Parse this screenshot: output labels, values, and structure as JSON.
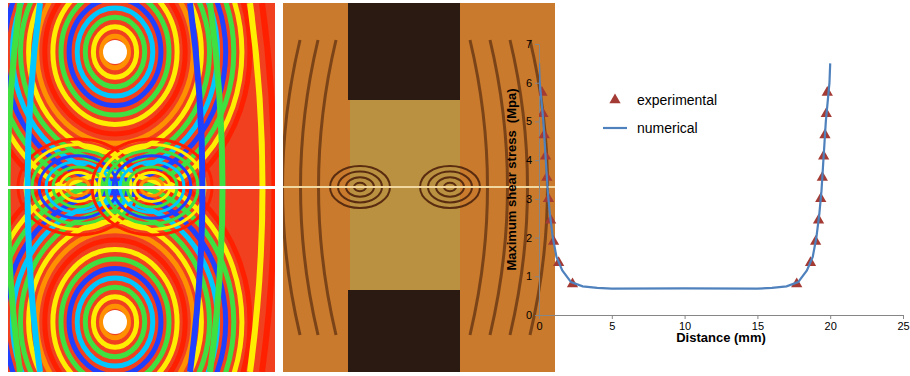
{
  "chart_data": {
    "type": "line",
    "x_label": "Distance (mm)",
    "y_label": "Maximum shear stress  (Mpa)",
    "xlim": [
      0,
      25
    ],
    "xticks": [
      0,
      5,
      10,
      15,
      20,
      25
    ],
    "ylim": [
      0,
      7
    ],
    "yticks": [
      0,
      1,
      2,
      3,
      4,
      5,
      6,
      7
    ],
    "grid": false,
    "legend": "top",
    "series": [
      {
        "name": "experimental",
        "type": "scatter",
        "marker": "triangle",
        "color": "#A33B34",
        "x": [
          0.2,
          0.27,
          0.36,
          0.45,
          0.54,
          0.65,
          0.8,
          1.0,
          1.35,
          2.3,
          17.7,
          18.65,
          19.0,
          19.2,
          19.35,
          19.46,
          19.55,
          19.64,
          19.73,
          19.8
        ],
        "values": [
          5.75,
          5.2,
          4.65,
          4.1,
          3.55,
          3.0,
          2.45,
          1.9,
          1.35,
          0.8,
          0.8,
          1.35,
          1.9,
          2.45,
          3.0,
          3.55,
          4.1,
          4.65,
          5.2,
          5.75
        ]
      },
      {
        "name": "numerical",
        "type": "line",
        "line_style": "solid",
        "color": "#4F81BD",
        "x": [
          0,
          0.05,
          0.15,
          0.3,
          0.4,
          0.5,
          0.6,
          0.75,
          0.95,
          1.2,
          1.6,
          2.2,
          3,
          4,
          5,
          10,
          15,
          16,
          17,
          17.8,
          18.4,
          18.8,
          19.05,
          19.25,
          19.4,
          19.5,
          19.6,
          19.7,
          19.85,
          19.95,
          20
        ],
        "values": [
          6.5,
          6.0,
          5.6,
          5.0,
          4.4,
          3.8,
          3.2,
          2.6,
          2.0,
          1.5,
          1.15,
          0.85,
          0.74,
          0.7,
          0.68,
          0.69,
          0.68,
          0.7,
          0.74,
          0.85,
          1.15,
          1.5,
          2.0,
          2.6,
          3.2,
          3.8,
          4.4,
          5.0,
          5.6,
          6.0,
          6.5
        ]
      }
    ]
  }
}
